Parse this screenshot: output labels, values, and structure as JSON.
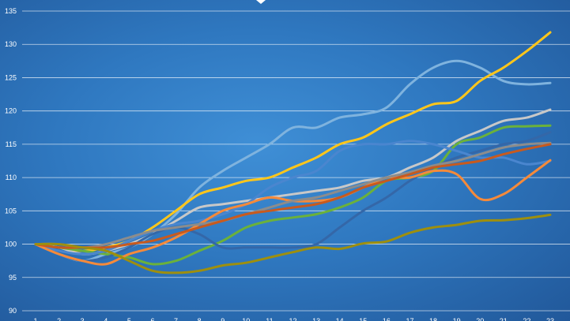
{
  "chart_data": {
    "type": "line",
    "title": "",
    "xlabel": "",
    "ylabel": "",
    "ylim": [
      90,
      135
    ],
    "yticks": [
      90,
      95,
      100,
      105,
      110,
      115,
      120,
      125,
      130,
      135
    ],
    "x": [
      1,
      2,
      3,
      4,
      5,
      6,
      7,
      8,
      9,
      10,
      11,
      12,
      13,
      14,
      15,
      16,
      17,
      18,
      19,
      20,
      21,
      22,
      23
    ],
    "grid": true,
    "legend": "none",
    "series": [
      {
        "color": "#7fb3de",
        "values": [
          100,
          98.5,
          97.5,
          98.5,
          99.5,
          101.5,
          104.5,
          108.5,
          111,
          113,
          115,
          117.5,
          117.5,
          119,
          119.5,
          120.5,
          124,
          126.5,
          127.5,
          126.5,
          124.5,
          124,
          124.2
        ]
      },
      {
        "color": "#ffc61a",
        "values": [
          100,
          99.5,
          99,
          99.5,
          100.5,
          102.5,
          105,
          107.5,
          108.5,
          109.5,
          110,
          111.5,
          113,
          115,
          116,
          118,
          119.5,
          121,
          121.5,
          124.5,
          126.5,
          129,
          131.8
        ]
      },
      {
        "color": "#c8c8c8",
        "values": [
          100,
          99.5,
          98.5,
          99,
          100,
          101.5,
          103.5,
          105.5,
          106,
          106.5,
          107,
          107.5,
          108,
          108.5,
          109.5,
          110,
          111.5,
          113,
          115.5,
          117,
          118.5,
          119,
          120.2
        ]
      },
      {
        "color": "#6bb13b",
        "values": [
          100,
          99.5,
          99,
          98.5,
          98,
          97,
          97.5,
          99,
          100.5,
          102.5,
          103.5,
          104,
          104.5,
          105.5,
          107,
          109.5,
          110,
          111,
          115,
          116,
          117.5,
          117.7,
          117.8
        ]
      },
      {
        "color": "#3467a8",
        "values": [
          100,
          98.5,
          97.5,
          98,
          99.5,
          101.5,
          102.5,
          101.5,
          99.5,
          99.5,
          99.5,
          99.5,
          100,
          102.5,
          105,
          107,
          109.5,
          111.5,
          113,
          114,
          115,
          115.5,
          116.8
        ]
      },
      {
        "color": "#4a86cf",
        "values": [
          100,
          99,
          98.5,
          99,
          100.5,
          102,
          103,
          103.5,
          104.5,
          106,
          108.5,
          110,
          111,
          114,
          115,
          115,
          115.5,
          115,
          114,
          113,
          113,
          112,
          112.5
        ]
      },
      {
        "color": "#f58a3a",
        "values": [
          100,
          98.5,
          97.5,
          97,
          98.5,
          99.5,
          101,
          103,
          105,
          106,
          107,
          106.5,
          106.5,
          107,
          108.5,
          110,
          110,
          111,
          110.5,
          106.8,
          107.5,
          110,
          112.6
        ]
      },
      {
        "color": "#8c8c8c",
        "values": [
          100,
          100,
          99.5,
          100,
          101,
          102,
          102.5,
          103,
          103.5,
          104.5,
          105.5,
          106.5,
          107,
          108,
          109,
          110,
          110.8,
          111.8,
          112.5,
          113.5,
          114.5,
          115,
          115.2
        ]
      },
      {
        "color": "#c85a1e",
        "values": [
          100,
          99.5,
          99.5,
          99.5,
          100,
          100.5,
          101.5,
          102.5,
          103.5,
          104.5,
          105,
          105.5,
          106,
          107,
          108.5,
          109.5,
          110.5,
          111.5,
          112,
          112.5,
          113.5,
          114.3,
          115
        ]
      },
      {
        "color": "#9e8f0e",
        "values": [
          100,
          100,
          99.5,
          99,
          97.5,
          96,
          95.7,
          96,
          96.8,
          97.2,
          98,
          98.8,
          99.5,
          99.3,
          100.1,
          100.4,
          101.7,
          102.5,
          102.9,
          103.5,
          103.6,
          103.9,
          104.4
        ]
      }
    ]
  }
}
